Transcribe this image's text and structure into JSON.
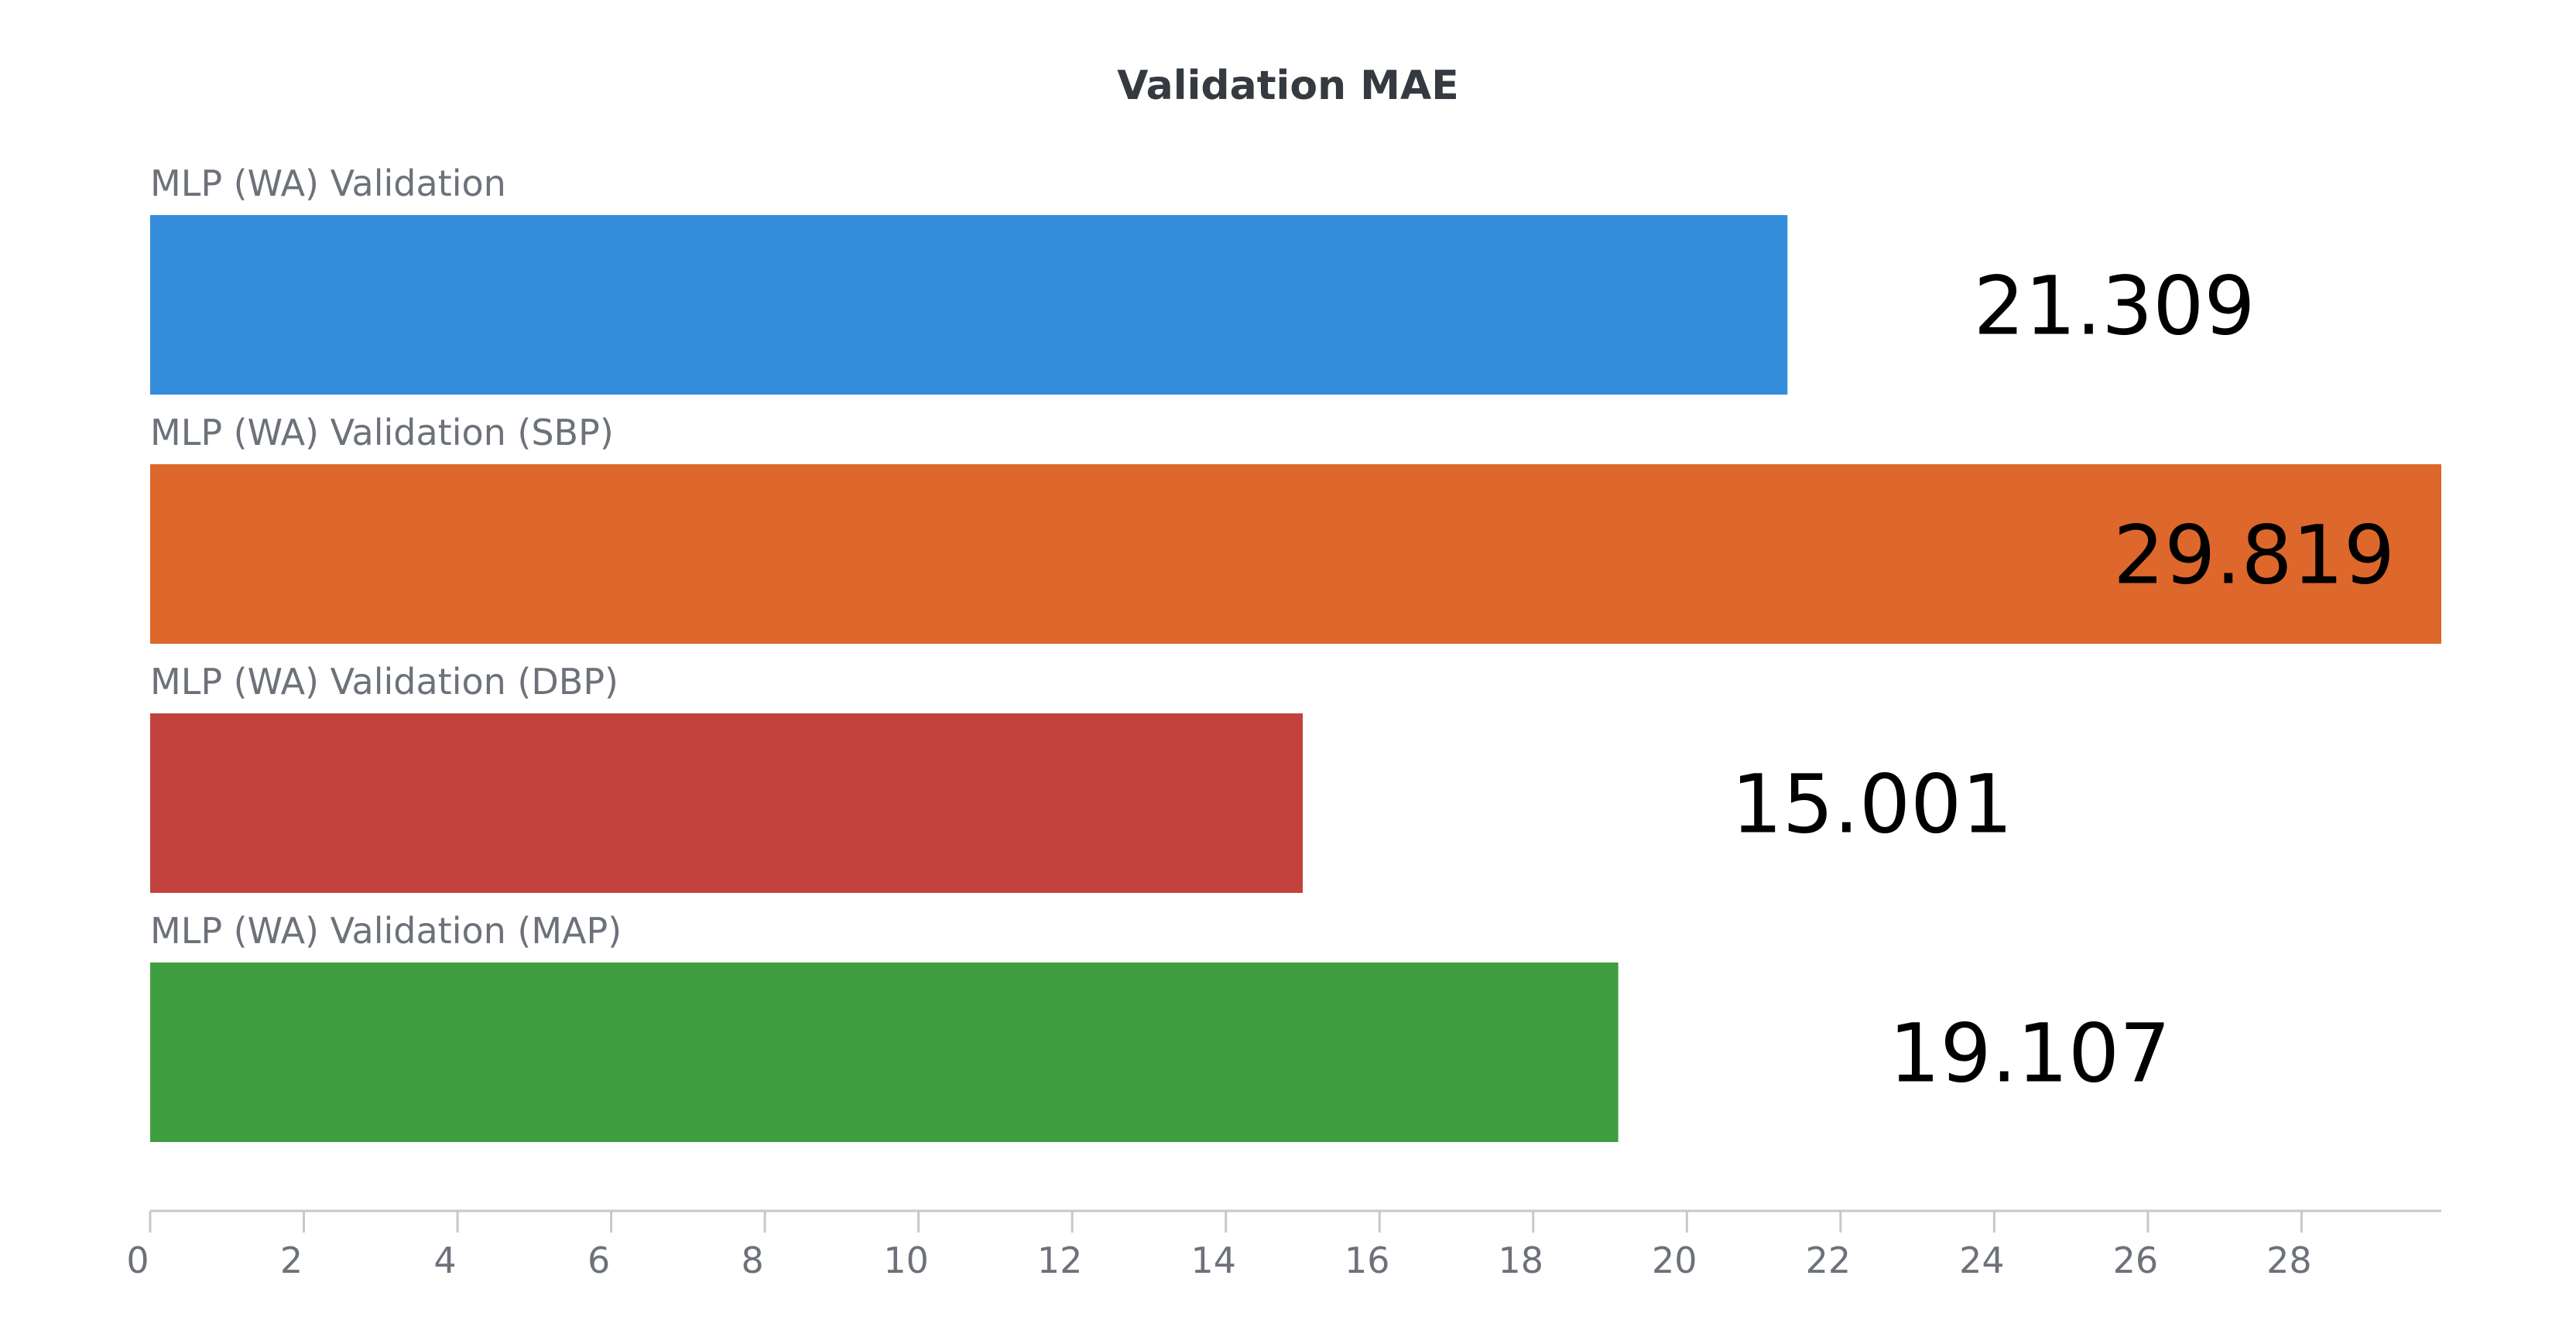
{
  "chart_data": {
    "type": "bar",
    "orientation": "horizontal",
    "title": "Validation MAE",
    "xlabel": "",
    "ylabel": "",
    "xlim": [
      0,
      29.819
    ],
    "grid": false,
    "legend": "none",
    "categories": [
      "MLP (WA) Validation",
      "MLP (WA) Validation (SBP)",
      "MLP (WA) Validation (DBP)",
      "MLP (WA) Validation (MAP)"
    ],
    "values": [
      21.309,
      29.819,
      15.001,
      19.107
    ],
    "value_labels": [
      "21.309",
      "29.819",
      "15.001",
      "19.107"
    ],
    "colors": [
      "#348ddb",
      "#de672c",
      "#c2423d",
      "#3f9e40"
    ],
    "x_ticks": [
      "0",
      "2",
      "4",
      "6",
      "8",
      "10",
      "12",
      "14",
      "16",
      "18",
      "20",
      "22",
      "24",
      "26",
      "28"
    ]
  }
}
